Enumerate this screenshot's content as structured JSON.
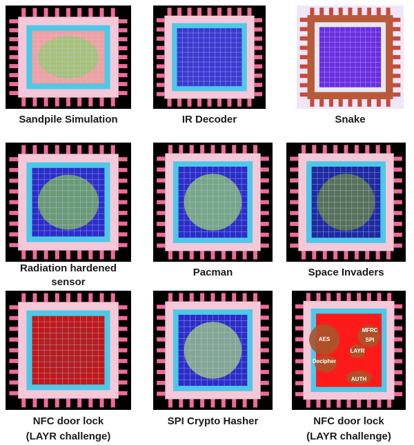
{
  "items": [
    {
      "caption": [
        "Sandpile Simulation"
      ]
    },
    {
      "caption": [
        "IR Decoder"
      ]
    },
    {
      "caption": [
        "Snake"
      ]
    },
    {
      "caption": [
        "Radiation hardened",
        "sensor"
      ]
    },
    {
      "caption": [
        "Pacman"
      ]
    },
    {
      "caption": [
        "Space Invaders"
      ]
    },
    {
      "caption": [
        "NFC door lock",
        "(LAYR challenge)"
      ]
    },
    {
      "caption": [
        "SPI Crypto Hasher"
      ]
    },
    {
      "caption": [
        "NFC door lock",
        "(LAYR challenge)"
      ],
      "labels": [
        "AES",
        "MFRC",
        "SPI",
        "LAYR",
        "Decipher",
        "AUTH"
      ]
    }
  ]
}
